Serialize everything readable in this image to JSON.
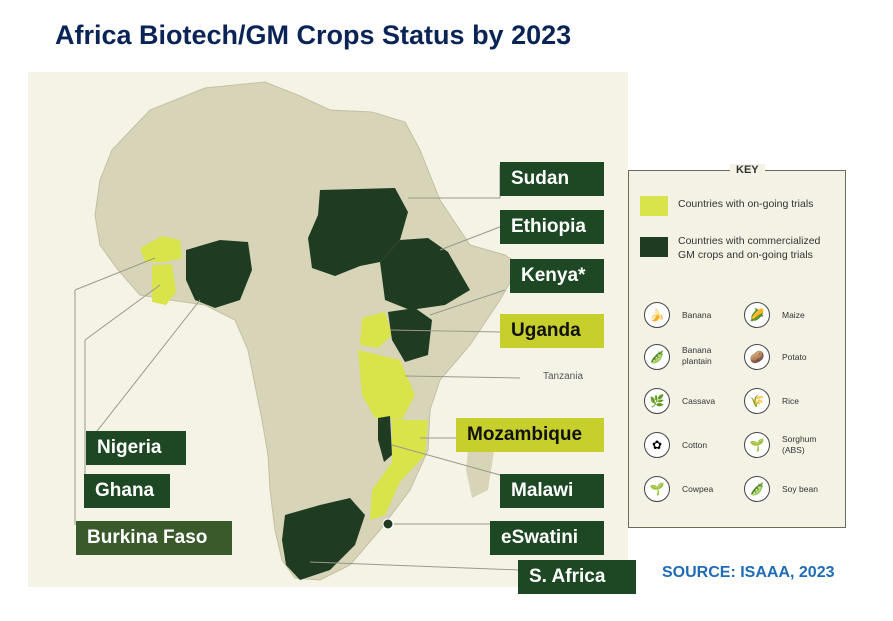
{
  "title": "Africa Biotech/GM Crops Status by 2023",
  "source": "SOURCE: ISAAA, 2023",
  "colors": {
    "trials": "#d9e34a",
    "commercialized": "#1f3b22",
    "label_dark": "#1d4823",
    "label_yellow": "#c7cf2c",
    "land": "#d6d3b6",
    "source_text": "#1f6bb5"
  },
  "labels": {
    "sudan": "Sudan",
    "ethiopia": "Ethiopia",
    "kenya": "Kenya*",
    "uganda": "Uganda",
    "mozambique": "Mozambique",
    "malawi": "Malawi",
    "eswatini": "eSwatini",
    "south_africa": "S. Africa",
    "nigeria": "Nigeria",
    "ghana": "Ghana",
    "burkina_faso": "Burkina Faso",
    "tanzania": "Tanzania"
  },
  "key": {
    "title": "KEY",
    "trials": "Countries with on-going trials",
    "commercialized_line1": "Countries with commercialized",
    "commercialized_line2": "GM crops and on-going trials",
    "crops": [
      {
        "name": "Banana",
        "icon": "banana-icon"
      },
      {
        "name": "Maize",
        "icon": "maize-icon"
      },
      {
        "name": "Banana plantain",
        "icon": "plantain-icon"
      },
      {
        "name": "Potato",
        "icon": "potato-icon"
      },
      {
        "name": "Cassava",
        "icon": "cassava-icon"
      },
      {
        "name": "Rice",
        "icon": "rice-icon"
      },
      {
        "name": "Cotton",
        "icon": "cotton-icon"
      },
      {
        "name": "Sorghum (ABS)",
        "icon": "sorghum-icon"
      },
      {
        "name": "Cowpea",
        "icon": "cowpea-icon"
      },
      {
        "name": "Soy bean",
        "icon": "soybean-icon"
      }
    ]
  }
}
